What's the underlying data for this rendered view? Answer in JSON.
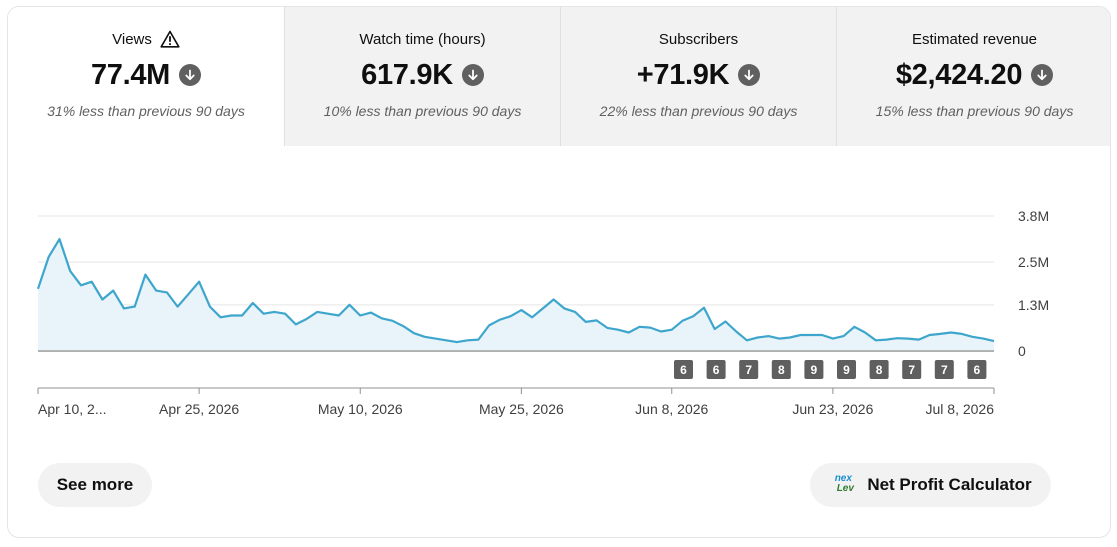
{
  "metrics": [
    {
      "label": "Views",
      "value": "77.4M",
      "change": "31% less than previous 90 days",
      "active": true,
      "warning": true
    },
    {
      "label": "Watch time (hours)",
      "value": "617.9K",
      "change": "10% less than previous 90 days",
      "active": false,
      "warning": false
    },
    {
      "label": "Subscribers",
      "value": "+71.9K",
      "change": "22% less than previous 90 days",
      "active": false,
      "warning": false
    },
    {
      "label": "Estimated revenue",
      "value": "$2,424.20",
      "change": "15% less than previous 90 days",
      "active": false,
      "warning": false
    }
  ],
  "chart_data": {
    "type": "area",
    "series": [
      {
        "values": [
          1.75,
          2.65,
          3.15,
          2.25,
          1.85,
          1.95,
          1.45,
          1.7,
          1.2,
          1.25,
          2.15,
          1.7,
          1.65,
          1.25,
          1.6,
          1.95,
          1.25,
          0.95,
          1.0,
          1.0,
          1.35,
          1.05,
          1.1,
          1.05,
          0.75,
          0.9,
          1.1,
          1.05,
          1.0,
          1.3,
          1.0,
          1.08,
          0.92,
          0.85,
          0.7,
          0.5,
          0.4,
          0.35,
          0.3,
          0.25,
          0.3,
          0.32,
          0.72,
          0.88,
          0.98,
          1.15,
          0.95,
          1.2,
          1.45,
          1.2,
          1.1,
          0.82,
          0.86,
          0.65,
          0.6,
          0.52,
          0.68,
          0.66,
          0.55,
          0.6,
          0.85,
          0.98,
          1.22,
          0.62,
          0.83,
          0.55,
          0.3,
          0.38,
          0.42,
          0.35,
          0.38,
          0.45,
          0.45,
          0.45,
          0.35,
          0.42,
          0.68,
          0.52,
          0.3,
          0.32,
          0.36,
          0.35,
          0.32,
          0.45,
          0.48,
          0.52,
          0.48,
          0.4,
          0.35,
          0.28
        ]
      }
    ],
    "y_ticks": [
      "3.8M",
      "2.5M",
      "1.3M",
      "0"
    ],
    "y_tick_values": [
      3.8,
      2.5,
      1.3,
      0
    ],
    "ylim": [
      0,
      3.8
    ],
    "x_tick_labels": [
      "Apr 10, 2...",
      "Apr 25, 2026",
      "May 10, 2026",
      "May 25, 2026",
      "Jun 8, 2026",
      "Jun 23, 2026",
      "Jul 8, 2026"
    ],
    "x_tick_index": [
      0,
      15,
      30,
      45,
      59,
      74,
      89
    ],
    "markers": [
      "6",
      "6",
      "7",
      "8",
      "9",
      "9",
      "8",
      "7",
      "7",
      "6"
    ],
    "colors": {
      "line": "#3ea6cc",
      "fill": "#e8f4f9",
      "marker_bg": "#5f5f5f",
      "grid": "#e5e5e5",
      "baseline": "#909090"
    }
  },
  "buttons": {
    "see_more": "See more",
    "calculator": "Net Profit Calculator",
    "calculator_logo_top": "nex",
    "calculator_logo_bottom": "Lev"
  },
  "icons": {
    "down": "arrow-down-circle-icon",
    "warning": "warning-triangle-icon"
  }
}
